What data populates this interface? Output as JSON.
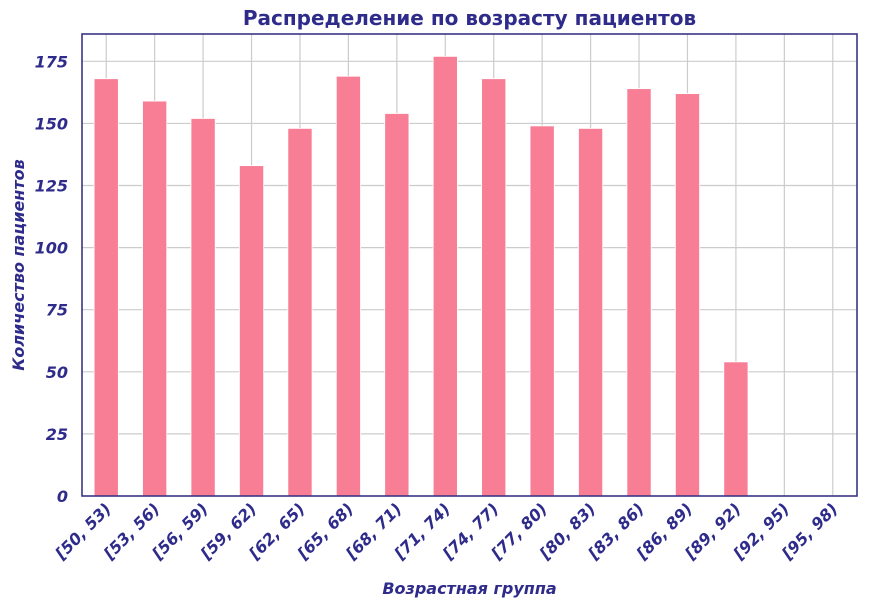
{
  "chart_data": {
    "type": "bar",
    "title": "Распределение по возрасту пациентов",
    "xlabel": "Возрастная группа",
    "ylabel": "Количество пациентов",
    "categories": [
      "[50, 53)",
      "[53, 56)",
      "[56, 59)",
      "[59, 62)",
      "[62, 65)",
      "[65, 68)",
      "[68, 71)",
      "[71, 74)",
      "[74, 77)",
      "[77, 80)",
      "[80, 83)",
      "[83, 86)",
      "[86, 89)",
      "[89, 92)",
      "[92, 95)",
      "[95, 98)"
    ],
    "values": [
      168,
      159,
      152,
      133,
      148,
      169,
      154,
      177,
      168,
      149,
      148,
      164,
      162,
      54,
      0,
      0
    ],
    "ylim": [
      0,
      186
    ],
    "yticks": [
      0,
      25,
      50,
      75,
      100,
      125,
      150,
      175
    ],
    "grid": true,
    "colors": {
      "bar": "#f87e96",
      "bar_edge": "#ffffff",
      "text": "#2e2b8a",
      "frame": "#3a3585",
      "grid": "#cccccc"
    }
  }
}
